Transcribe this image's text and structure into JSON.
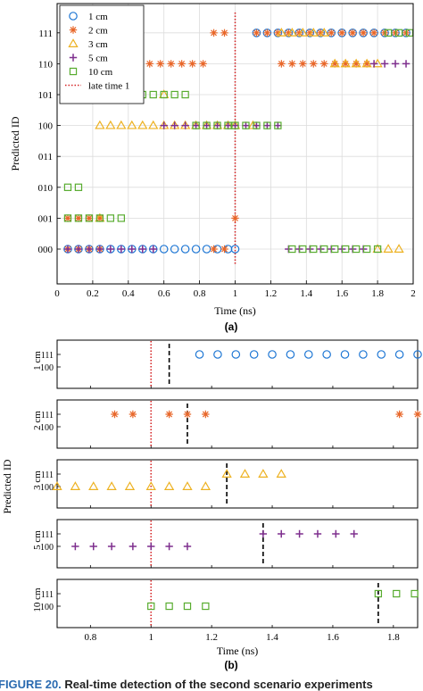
{
  "figure": {
    "label_a": "(a)",
    "label_b": "(b)",
    "caption_prefix": "FIGURE 20.",
    "caption_text": " Real-time detection of the second scenario experiments"
  },
  "colors": {
    "c1": "#1f77d4",
    "c2": "#e8672a",
    "c3": "#edb120",
    "c5": "#7e2f8e",
    "c10": "#58ac2f",
    "late": "#d62728",
    "vline": "#000000"
  },
  "chart_data": [
    {
      "type": "scatter",
      "xlabel": "Time (ns)",
      "ylabel": "Predicted ID",
      "xlim": [
        0,
        2
      ],
      "ylim": [
        0,
        7
      ],
      "xticks": [
        0,
        0.2,
        0.4,
        0.6,
        0.8,
        1,
        1.2,
        1.4,
        1.6,
        1.8,
        2
      ],
      "xtick_labels": [
        "0",
        "0.2",
        "0.4",
        "0.6",
        "0.8",
        "1",
        "1.2",
        "1.4",
        "1.6",
        "1.8",
        "2"
      ],
      "yticks": [
        0,
        1,
        2,
        3,
        4,
        5,
        6,
        7
      ],
      "ytick_labels": [
        "000",
        "001",
        "010",
        "011",
        "100",
        "101",
        "110",
        "111"
      ],
      "grid": true,
      "legend": "top-left",
      "annotation_lines": [
        {
          "name": "late time 1",
          "x": 1,
          "style": "dotted"
        }
      ],
      "series": [
        {
          "name": "1 cm",
          "marker": "circle",
          "color": "c1",
          "points": [
            [
              0.06,
              0
            ],
            [
              0.12,
              0
            ],
            [
              0.18,
              0
            ],
            [
              0.24,
              0
            ],
            [
              0.3,
              0
            ],
            [
              0.36,
              0
            ],
            [
              0.42,
              0
            ],
            [
              0.48,
              0
            ],
            [
              0.54,
              0
            ],
            [
              0.6,
              0
            ],
            [
              0.66,
              0
            ],
            [
              0.72,
              0
            ],
            [
              0.78,
              0
            ],
            [
              0.84,
              0
            ],
            [
              0.9,
              0
            ],
            [
              0.96,
              0
            ],
            [
              1.0,
              0
            ],
            [
              1.12,
              7
            ],
            [
              1.18,
              7
            ],
            [
              1.24,
              7
            ],
            [
              1.3,
              7
            ],
            [
              1.36,
              7
            ],
            [
              1.42,
              7
            ],
            [
              1.48,
              7
            ],
            [
              1.54,
              7
            ],
            [
              1.6,
              7
            ],
            [
              1.66,
              7
            ],
            [
              1.72,
              7
            ],
            [
              1.78,
              7
            ],
            [
              1.84,
              7
            ],
            [
              1.9,
              7
            ],
            [
              1.96,
              7
            ]
          ]
        },
        {
          "name": "2 cm",
          "marker": "star",
          "color": "c2",
          "points": [
            [
              0.06,
              0
            ],
            [
              0.12,
              0
            ],
            [
              0.18,
              0
            ],
            [
              0.24,
              0
            ],
            [
              0.06,
              1
            ],
            [
              0.12,
              1
            ],
            [
              0.18,
              1
            ],
            [
              0.24,
              1
            ],
            [
              0.88,
              0
            ],
            [
              0.94,
              0
            ],
            [
              0.34,
              6
            ],
            [
              0.4,
              6
            ],
            [
              0.46,
              6
            ],
            [
              0.52,
              6
            ],
            [
              0.58,
              6
            ],
            [
              0.64,
              6
            ],
            [
              0.7,
              6
            ],
            [
              0.76,
              6
            ],
            [
              0.82,
              6
            ],
            [
              0.88,
              7
            ],
            [
              0.94,
              7
            ],
            [
              1.0,
              1
            ],
            [
              1.12,
              7
            ],
            [
              1.18,
              7
            ],
            [
              1.24,
              7
            ],
            [
              1.3,
              7
            ],
            [
              1.36,
              7
            ],
            [
              1.42,
              7
            ],
            [
              1.48,
              7
            ],
            [
              1.54,
              7
            ],
            [
              1.6,
              7
            ],
            [
              1.66,
              7
            ],
            [
              1.72,
              7
            ],
            [
              1.78,
              7
            ],
            [
              1.84,
              7
            ],
            [
              1.9,
              7
            ],
            [
              1.96,
              7
            ],
            [
              1.26,
              6
            ],
            [
              1.32,
              6
            ],
            [
              1.38,
              6
            ],
            [
              1.44,
              6
            ],
            [
              1.5,
              6
            ],
            [
              1.56,
              6
            ],
            [
              1.62,
              6
            ],
            [
              1.68,
              6
            ],
            [
              1.74,
              6
            ]
          ]
        },
        {
          "name": "3 cm",
          "marker": "triangle",
          "color": "c3",
          "points": [
            [
              0.24,
              1
            ],
            [
              0.24,
              4
            ],
            [
              0.3,
              4
            ],
            [
              0.36,
              4
            ],
            [
              0.42,
              4
            ],
            [
              0.48,
              4
            ],
            [
              0.54,
              4
            ],
            [
              0.6,
              4
            ],
            [
              0.66,
              4
            ],
            [
              0.72,
              4
            ],
            [
              0.78,
              4
            ],
            [
              0.84,
              4
            ],
            [
              0.9,
              4
            ],
            [
              0.96,
              4
            ],
            [
              1.0,
              4
            ],
            [
              0.6,
              5
            ],
            [
              1.1,
              4
            ],
            [
              1.26,
              7
            ],
            [
              1.32,
              7
            ],
            [
              1.38,
              7
            ],
            [
              1.44,
              7
            ],
            [
              1.5,
              7
            ],
            [
              1.56,
              6
            ],
            [
              1.62,
              6
            ],
            [
              1.68,
              6
            ],
            [
              1.74,
              6
            ],
            [
              1.8,
              6
            ],
            [
              1.8,
              0
            ],
            [
              1.86,
              0
            ],
            [
              1.92,
              0
            ]
          ]
        },
        {
          "name": "5 cm",
          "marker": "plus",
          "color": "c5",
          "points": [
            [
              0.06,
              0
            ],
            [
              0.12,
              0
            ],
            [
              0.18,
              0
            ],
            [
              0.24,
              0
            ],
            [
              0.3,
              0
            ],
            [
              0.36,
              0
            ],
            [
              0.42,
              0
            ],
            [
              0.48,
              0
            ],
            [
              0.54,
              0
            ],
            [
              0.6,
              4
            ],
            [
              0.66,
              4
            ],
            [
              0.72,
              4
            ],
            [
              0.78,
              4
            ],
            [
              0.84,
              4
            ],
            [
              0.9,
              4
            ],
            [
              0.96,
              4
            ],
            [
              1.0,
              4
            ],
            [
              1.06,
              4
            ],
            [
              1.12,
              4
            ],
            [
              1.18,
              4
            ],
            [
              1.24,
              4
            ],
            [
              1.3,
              0
            ],
            [
              1.36,
              0
            ],
            [
              1.42,
              0
            ],
            [
              1.48,
              0
            ],
            [
              1.54,
              0
            ],
            [
              1.6,
              0
            ],
            [
              1.66,
              0
            ],
            [
              1.72,
              0
            ],
            [
              1.78,
              6
            ],
            [
              1.84,
              6
            ],
            [
              1.9,
              6
            ],
            [
              1.96,
              6
            ]
          ]
        },
        {
          "name": "10 cm",
          "marker": "square",
          "color": "c10",
          "points": [
            [
              0.06,
              2
            ],
            [
              0.12,
              2
            ],
            [
              0.06,
              1
            ],
            [
              0.12,
              1
            ],
            [
              0.18,
              1
            ],
            [
              0.24,
              1
            ],
            [
              0.3,
              1
            ],
            [
              0.36,
              1
            ],
            [
              0.42,
              5
            ],
            [
              0.48,
              5
            ],
            [
              0.54,
              5
            ],
            [
              0.6,
              5
            ],
            [
              0.66,
              5
            ],
            [
              0.72,
              5
            ],
            [
              0.78,
              4
            ],
            [
              0.84,
              4
            ],
            [
              0.9,
              4
            ],
            [
              0.96,
              4
            ],
            [
              1.0,
              4
            ],
            [
              1.06,
              4
            ],
            [
              1.12,
              4
            ],
            [
              1.18,
              4
            ],
            [
              1.24,
              4
            ],
            [
              1.32,
              0
            ],
            [
              1.38,
              0
            ],
            [
              1.44,
              0
            ],
            [
              1.5,
              0
            ],
            [
              1.56,
              0
            ],
            [
              1.62,
              0
            ],
            [
              1.68,
              0
            ],
            [
              1.74,
              0
            ],
            [
              1.8,
              0
            ],
            [
              1.86,
              7
            ],
            [
              1.92,
              7
            ],
            [
              1.98,
              7
            ]
          ]
        }
      ]
    },
    {
      "type": "scatter",
      "xlabel": "Time (ns)",
      "ylabel": "Predicted ID",
      "xlim": [
        0.69,
        1.88
      ],
      "xticks": [
        0.8,
        1,
        1.2,
        1.4,
        1.6,
        1.8
      ],
      "xtick_labels": [
        "0.8",
        "1",
        "1.2",
        "1.4",
        "1.6",
        "1.8"
      ],
      "ytick_labels": [
        "100",
        "111"
      ],
      "late_time": 1,
      "panels": [
        {
          "label": "1 cm",
          "marker": "circle",
          "color": "c1",
          "detect_x": 1.06,
          "points": [
            [
              1.16,
              1
            ],
            [
              1.22,
              1
            ],
            [
              1.28,
              1
            ],
            [
              1.34,
              1
            ],
            [
              1.4,
              1
            ],
            [
              1.46,
              1
            ],
            [
              1.52,
              1
            ],
            [
              1.58,
              1
            ],
            [
              1.64,
              1
            ],
            [
              1.7,
              1
            ],
            [
              1.76,
              1
            ],
            [
              1.82,
              1
            ],
            [
              1.88,
              1
            ]
          ]
        },
        {
          "label": "2 cm",
          "marker": "star",
          "color": "c2",
          "detect_x": 1.12,
          "points": [
            [
              0.88,
              1
            ],
            [
              0.94,
              1
            ],
            [
              1.06,
              1
            ],
            [
              1.12,
              1
            ],
            [
              1.18,
              1
            ],
            [
              1.82,
              1
            ],
            [
              1.88,
              1
            ]
          ]
        },
        {
          "label": "3 cm",
          "marker": "triangle",
          "color": "c3",
          "detect_x": 1.25,
          "points": [
            [
              0.69,
              0
            ],
            [
              0.75,
              0
            ],
            [
              0.81,
              0
            ],
            [
              0.87,
              0
            ],
            [
              0.93,
              0
            ],
            [
              1.0,
              0
            ],
            [
              1.06,
              0
            ],
            [
              1.12,
              0
            ],
            [
              1.18,
              0
            ],
            [
              1.25,
              1
            ],
            [
              1.31,
              1
            ],
            [
              1.37,
              1
            ],
            [
              1.43,
              1
            ]
          ]
        },
        {
          "label": "5 cm",
          "marker": "plus",
          "color": "c5",
          "detect_x": 1.37,
          "points": [
            [
              0.75,
              0
            ],
            [
              0.81,
              0
            ],
            [
              0.87,
              0
            ],
            [
              0.94,
              0
            ],
            [
              1.0,
              0
            ],
            [
              1.06,
              0
            ],
            [
              1.12,
              0
            ],
            [
              1.37,
              1
            ],
            [
              1.43,
              1
            ],
            [
              1.49,
              1
            ],
            [
              1.55,
              1
            ],
            [
              1.61,
              1
            ],
            [
              1.67,
              1
            ]
          ]
        },
        {
          "label": "10 cm",
          "marker": "square",
          "color": "c10",
          "detect_x": 1.75,
          "points": [
            [
              1.0,
              0
            ],
            [
              1.06,
              0
            ],
            [
              1.12,
              0
            ],
            [
              1.18,
              0
            ],
            [
              1.75,
              1
            ],
            [
              1.81,
              1
            ],
            [
              1.87,
              1
            ]
          ]
        }
      ]
    }
  ]
}
